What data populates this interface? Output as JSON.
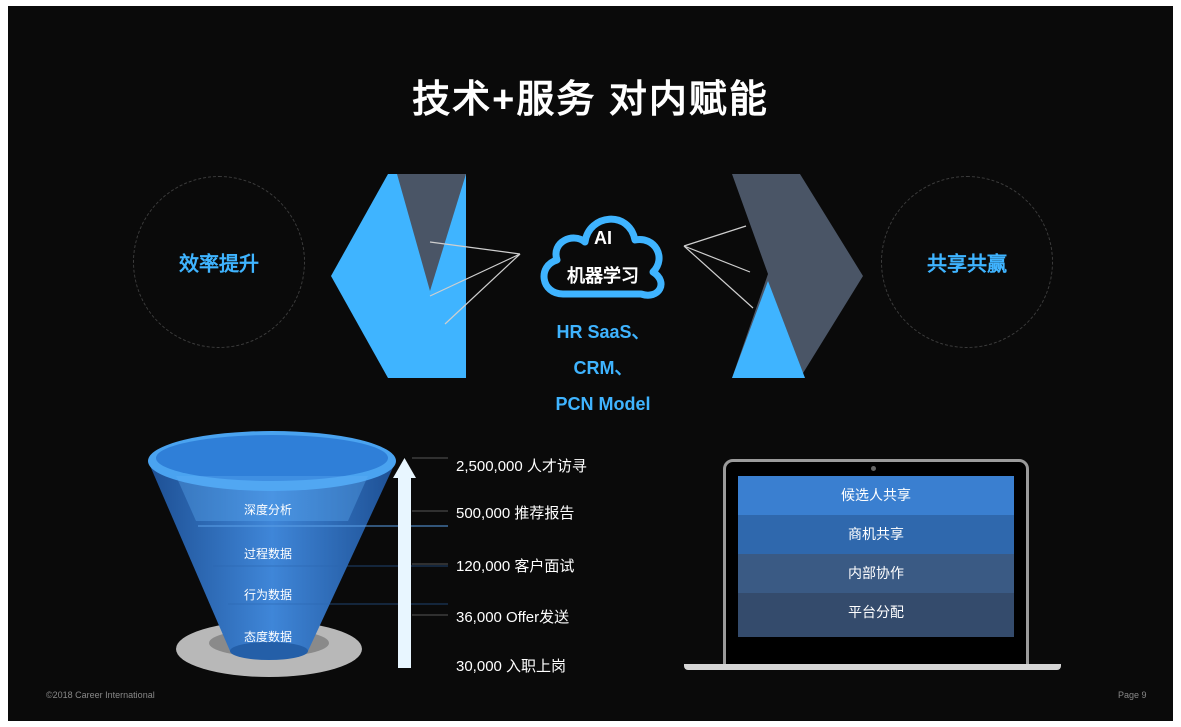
{
  "slide": {
    "title": "技术+服务 对内赋能",
    "left_circle": "效率提升",
    "right_circle": "共享共赢",
    "cloud": {
      "line1": "AI",
      "line2": "机器学习"
    },
    "platforms": [
      "HR SaaS、",
      "CRM、",
      "PCN Model"
    ],
    "funnel_layers": [
      "深度分析",
      "过程数据",
      "行为数据",
      "态度数据"
    ],
    "metrics": [
      "2,500,000 人才访寻",
      "500,000 推荐报告",
      "120,000 客户面试",
      "36,000  Offer发送",
      "30,000  入职上岗"
    ],
    "laptop_rows": [
      "候选人共享",
      "商机共享",
      "内部协作",
      "平台分配"
    ],
    "footer_left": "©2018 Career International",
    "footer_right": "Page 9"
  },
  "colors": {
    "background": "#0a0a0a",
    "accent_blue": "#3fb4ff",
    "slate": "#4a5566"
  }
}
